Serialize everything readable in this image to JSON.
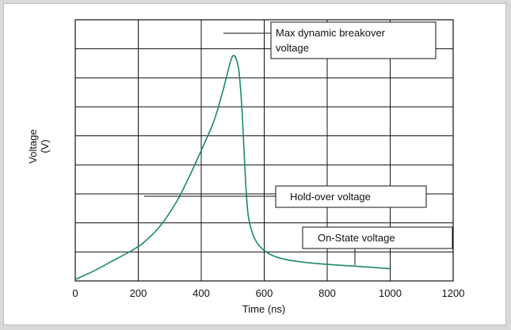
{
  "chart_data": {
    "type": "line",
    "xlabel": "Time (ns)",
    "ylabel": "Voltage",
    "ylabel_unit": "(V)",
    "x_ticks": [
      "0",
      "200",
      "400",
      "600",
      "800",
      "1000",
      "1200"
    ],
    "xlim": [
      0,
      1200
    ],
    "ylim": [
      0,
      9
    ],
    "grid": true,
    "y_tick_labels_shown": false,
    "line_color": "#1a8a64",
    "series": [
      {
        "points": [
          [
            0,
            0.05
          ],
          [
            60,
            0.35
          ],
          [
            120,
            0.7
          ],
          [
            180,
            1.05
          ],
          [
            220,
            1.35
          ],
          [
            270,
            1.9
          ],
          [
            320,
            2.7
          ],
          [
            360,
            3.55
          ],
          [
            400,
            4.5
          ],
          [
            440,
            5.5
          ],
          [
            470,
            6.6
          ],
          [
            490,
            7.45
          ],
          [
            500,
            7.75
          ],
          [
            510,
            7.68
          ],
          [
            520,
            7.2
          ],
          [
            530,
            5.8
          ],
          [
            540,
            3.6
          ],
          [
            550,
            2.2
          ],
          [
            570,
            1.45
          ],
          [
            600,
            1.05
          ],
          [
            640,
            0.82
          ],
          [
            700,
            0.68
          ],
          [
            800,
            0.57
          ],
          [
            900,
            0.5
          ],
          [
            1000,
            0.42
          ]
        ]
      }
    ],
    "annotations": [
      {
        "label": "Max dynamic breakover voltage",
        "line1": "Max dynamic breakover",
        "line2": "voltage"
      },
      {
        "label": "Hold-over voltage"
      },
      {
        "label": "On-State voltage"
      }
    ]
  }
}
